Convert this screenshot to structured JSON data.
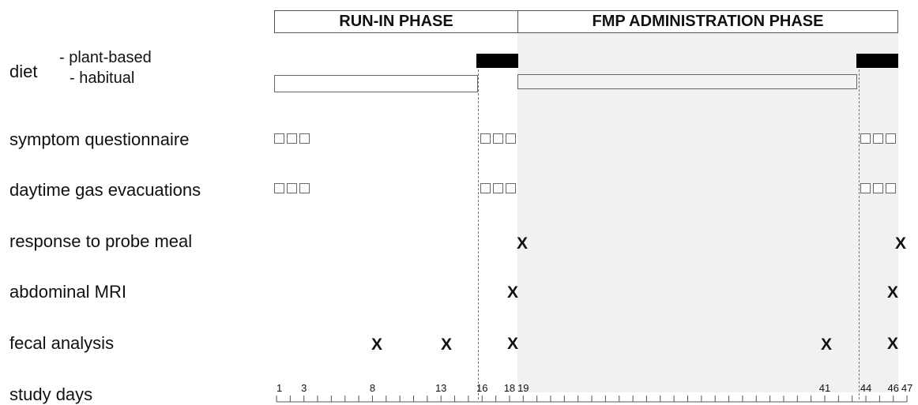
{
  "phases": {
    "run_in": "RUN-IN PHASE",
    "fmp": "FMP ADMINISTRATION PHASE"
  },
  "rows": {
    "diet": "diet",
    "diet_plant": "- plant-based",
    "diet_habitual": "- habitual",
    "symptom": "symptom questionnaire",
    "gas": "daytime gas evacuations",
    "probe": "response to probe meal",
    "mri": "abdominal MRI",
    "fecal": "fecal analysis",
    "days": "study days"
  },
  "mark_symbol": "X",
  "day_labels": [
    {
      "day": 1,
      "text": "1"
    },
    {
      "day": 3,
      "text": "3"
    },
    {
      "day": 8,
      "text": "8"
    },
    {
      "day": 13,
      "text": "13"
    },
    {
      "day": 16,
      "text": "16"
    },
    {
      "day": 18,
      "text": "18"
    },
    {
      "day": 19,
      "text": "19"
    },
    {
      "day": 41,
      "text": "41"
    },
    {
      "day": 44,
      "text": "44"
    },
    {
      "day": 46,
      "text": "46"
    },
    {
      "day": 47,
      "text": "47"
    }
  ],
  "colors": {
    "shade": "#f1f1f1",
    "bar": "#000000"
  }
}
